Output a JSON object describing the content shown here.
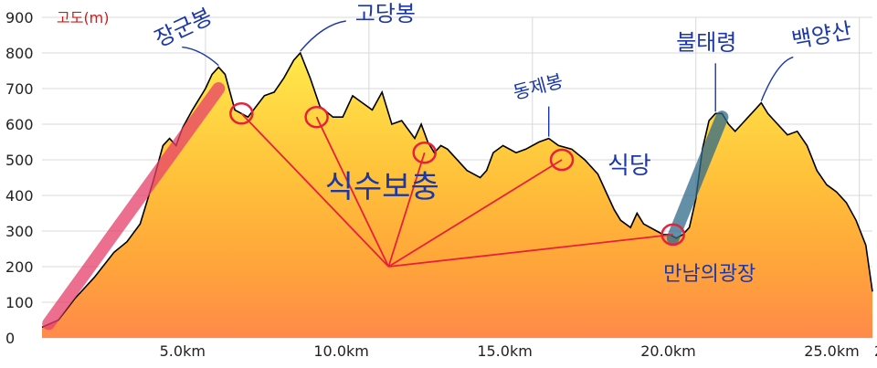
{
  "chart_data": {
    "type": "area",
    "title": "",
    "ylabel": "고도(m)",
    "xlabel": "",
    "xlim": [
      0,
      25.4
    ],
    "ylim": [
      0,
      900
    ],
    "yticks": [
      "0",
      "100",
      "200",
      "300",
      "400",
      "500",
      "600",
      "700",
      "800",
      "900"
    ],
    "xticks": [
      {
        "value": 5,
        "label": "5.0km"
      },
      {
        "value": 10,
        "label": "10.0km"
      },
      {
        "value": 15,
        "label": "15.0km"
      },
      {
        "value": 20,
        "label": "20.0km"
      },
      {
        "value": 25,
        "label": "25.0km"
      }
    ],
    "xticks_partial": "25.",
    "grid": true,
    "series": [
      {
        "points": [
          [
            0.0,
            30
          ],
          [
            0.5,
            50
          ],
          [
            1.0,
            110
          ],
          [
            1.6,
            170
          ],
          [
            2.2,
            240
          ],
          [
            2.6,
            270
          ],
          [
            3.0,
            320
          ],
          [
            3.4,
            440
          ],
          [
            3.7,
            540
          ],
          [
            3.9,
            560
          ],
          [
            4.1,
            540
          ],
          [
            4.3,
            590
          ],
          [
            4.6,
            640
          ],
          [
            5.0,
            700
          ],
          [
            5.2,
            740
          ],
          [
            5.4,
            760
          ],
          [
            5.6,
            740
          ],
          [
            5.9,
            640
          ],
          [
            6.3,
            620
          ],
          [
            6.8,
            680
          ],
          [
            7.1,
            690
          ],
          [
            7.4,
            730
          ],
          [
            7.7,
            780
          ],
          [
            7.9,
            800
          ],
          [
            8.2,
            730
          ],
          [
            8.5,
            650
          ],
          [
            8.9,
            620
          ],
          [
            9.2,
            620
          ],
          [
            9.5,
            680
          ],
          [
            9.8,
            660
          ],
          [
            10.1,
            640
          ],
          [
            10.4,
            690
          ],
          [
            10.7,
            600
          ],
          [
            11.0,
            610
          ],
          [
            11.4,
            560
          ],
          [
            11.6,
            600
          ],
          [
            11.8,
            550
          ],
          [
            12.0,
            520
          ],
          [
            12.2,
            540
          ],
          [
            12.4,
            530
          ],
          [
            12.8,
            490
          ],
          [
            13.0,
            470
          ],
          [
            13.2,
            460
          ],
          [
            13.4,
            450
          ],
          [
            13.6,
            470
          ],
          [
            13.8,
            520
          ],
          [
            14.1,
            540
          ],
          [
            14.5,
            520
          ],
          [
            14.8,
            530
          ],
          [
            15.2,
            550
          ],
          [
            15.5,
            560
          ],
          [
            15.8,
            540
          ],
          [
            16.2,
            530
          ],
          [
            16.6,
            500
          ],
          [
            17.0,
            460
          ],
          [
            17.3,
            400
          ],
          [
            17.5,
            360
          ],
          [
            17.7,
            330
          ],
          [
            18.0,
            310
          ],
          [
            18.2,
            350
          ],
          [
            18.4,
            320
          ],
          [
            18.6,
            310
          ],
          [
            18.8,
            300
          ],
          [
            19.0,
            290
          ],
          [
            19.2,
            290
          ],
          [
            19.4,
            280
          ],
          [
            19.6,
            290
          ],
          [
            19.8,
            310
          ],
          [
            20.0,
            390
          ],
          [
            20.2,
            530
          ],
          [
            20.4,
            610
          ],
          [
            20.6,
            630
          ],
          [
            20.8,
            630
          ],
          [
            21.0,
            600
          ],
          [
            21.2,
            580
          ],
          [
            21.4,
            600
          ],
          [
            21.6,
            620
          ],
          [
            21.8,
            640
          ],
          [
            22.0,
            660
          ],
          [
            22.2,
            630
          ],
          [
            22.5,
            600
          ],
          [
            22.8,
            570
          ],
          [
            23.1,
            580
          ],
          [
            23.4,
            540
          ],
          [
            23.7,
            470
          ],
          [
            24.0,
            430
          ],
          [
            24.3,
            410
          ],
          [
            24.6,
            380
          ],
          [
            24.9,
            330
          ],
          [
            25.2,
            260
          ],
          [
            25.4,
            130
          ]
        ]
      }
    ],
    "annotations": [
      {
        "text": "장군봉",
        "x": 5.4,
        "y": 760
      },
      {
        "text": "고당봉",
        "x": 7.9,
        "y": 800
      },
      {
        "text": "동제봉",
        "x": 15.5,
        "y": 560
      },
      {
        "text": "불태령",
        "x": 20.6,
        "y": 630
      },
      {
        "text": "백양산",
        "x": 22.0,
        "y": 660
      },
      {
        "text": "식수보충",
        "x": 10.4,
        "y": 190
      },
      {
        "text": "식당",
        "x": 15.9,
        "y": 500
      },
      {
        "text": "만남의광장",
        "x": 19.3,
        "y": 290
      }
    ],
    "circled_points": [
      {
        "x": 6.1,
        "y": 630
      },
      {
        "x": 8.4,
        "y": 620
      },
      {
        "x": 11.7,
        "y": 520
      },
      {
        "x": 15.9,
        "y": 500
      },
      {
        "x": 19.3,
        "y": 290
      }
    ],
    "red_line_origin": {
      "x": 10.6,
      "y": 200
    },
    "highlight_segments": [
      {
        "color": "#e8406a",
        "from": [
          0.2,
          40
        ],
        "to": [
          5.4,
          700
        ]
      },
      {
        "color": "#2f6a8a",
        "from": [
          19.3,
          280
        ],
        "to": [
          20.8,
          620
        ]
      }
    ],
    "colors": {
      "gradient_top": "#ffe94a",
      "gradient_mid": "#ffb22c",
      "gradient_bottom": "#ff8a4a",
      "outline": "#000000",
      "circles": "#e8203c",
      "hand_text": "#1c37a8"
    }
  }
}
